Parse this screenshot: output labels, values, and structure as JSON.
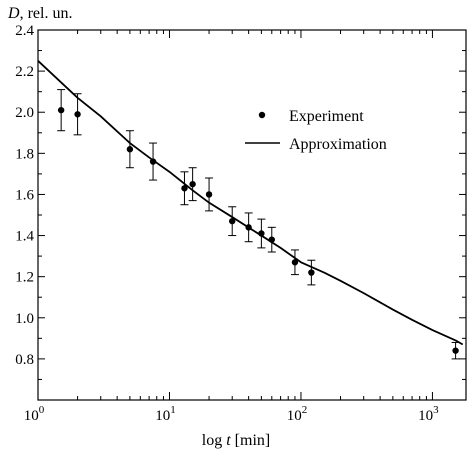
{
  "chart_data": {
    "type": "scatter",
    "ylabel_var": "D",
    "ylabel_unit": ", rel. un.",
    "xlabel_prefix": "log ",
    "xlabel_var": "t",
    "xlabel_unit": " [min]",
    "x_scale": "log",
    "xlim": [
      1,
      1800
    ],
    "ylim": [
      0.6,
      2.4
    ],
    "y_ticks": [
      "0.8",
      "1.0",
      "1.2",
      "1.4",
      "1.6",
      "1.8",
      "2.0",
      "2.2",
      "2.4"
    ],
    "x_ticks": [
      {
        "base": "10",
        "exp": "0"
      },
      {
        "base": "10",
        "exp": "1"
      },
      {
        "base": "10",
        "exp": "2"
      },
      {
        "base": "10",
        "exp": "3"
      }
    ],
    "grid": false,
    "legend_position": "top-right",
    "series": [
      {
        "name": "Experiment",
        "kind": "points-with-errorbars",
        "points": [
          {
            "x": 1.5,
            "y": 2.01,
            "err": 0.1
          },
          {
            "x": 2.0,
            "y": 1.99,
            "err": 0.1
          },
          {
            "x": 5.0,
            "y": 1.82,
            "err": 0.09
          },
          {
            "x": 7.5,
            "y": 1.76,
            "err": 0.09
          },
          {
            "x": 13,
            "y": 1.63,
            "err": 0.08
          },
          {
            "x": 15,
            "y": 1.65,
            "err": 0.08
          },
          {
            "x": 20,
            "y": 1.6,
            "err": 0.08
          },
          {
            "x": 30,
            "y": 1.47,
            "err": 0.07
          },
          {
            "x": 40,
            "y": 1.44,
            "err": 0.07
          },
          {
            "x": 50,
            "y": 1.41,
            "err": 0.07
          },
          {
            "x": 60,
            "y": 1.38,
            "err": 0.06
          },
          {
            "x": 90,
            "y": 1.27,
            "err": 0.06
          },
          {
            "x": 120,
            "y": 1.22,
            "err": 0.06
          },
          {
            "x": 1500,
            "y": 0.84,
            "err": 0.04
          }
        ]
      },
      {
        "name": "Approximation",
        "kind": "line",
        "x": [
          1,
          2,
          3,
          5,
          7,
          10,
          15,
          20,
          30,
          50,
          70,
          100,
          150,
          200,
          300,
          500,
          700,
          1000,
          1500,
          1700
        ],
        "y": [
          2.25,
          2.07,
          1.98,
          1.85,
          1.78,
          1.71,
          1.62,
          1.56,
          1.49,
          1.4,
          1.34,
          1.27,
          1.22,
          1.18,
          1.12,
          1.04,
          0.99,
          0.94,
          0.89,
          0.87
        ]
      }
    ]
  }
}
